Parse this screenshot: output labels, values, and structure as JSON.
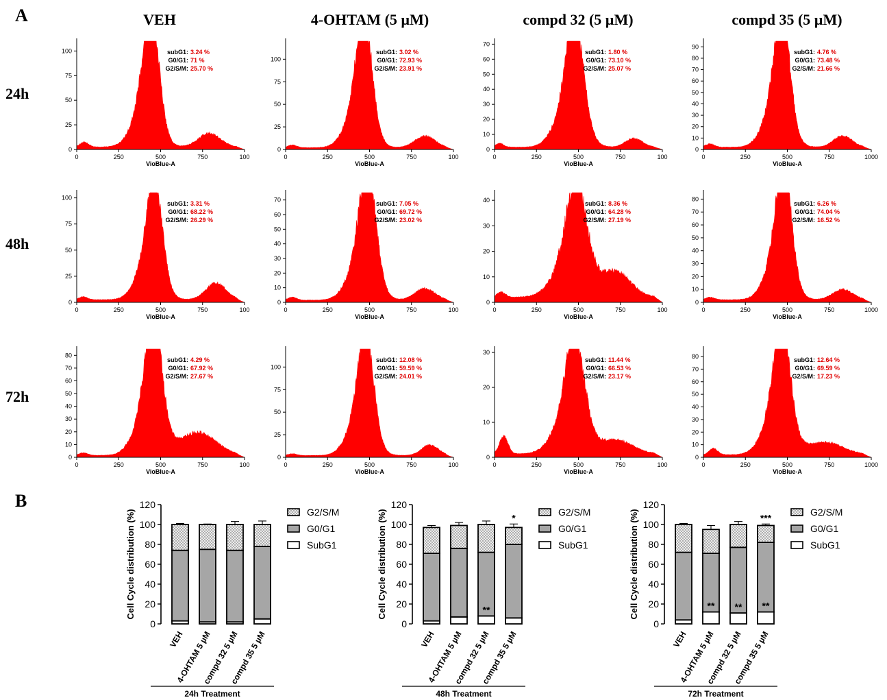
{
  "panel_a": {
    "label": "A",
    "columns": [
      "VEH",
      "4-OHTAM (5 µM)",
      "compd 32 (5 µM)",
      "compd 35 (5 µM)"
    ],
    "rows": [
      "24h",
      "48h",
      "72h"
    ]
  },
  "panel_b": {
    "label": "B"
  },
  "chart_data": [
    {
      "type": "area",
      "panel": "A",
      "time": "24h",
      "condition": "VEH",
      "xlabel": "VioBlue-A",
      "xlim": [
        0,
        1000
      ],
      "xticks": [
        "0",
        "250",
        "500",
        "750",
        "100"
      ],
      "ylim": [
        0,
        110
      ],
      "yticks": [
        0,
        25,
        50,
        75,
        100
      ],
      "peak": {
        "x": 445,
        "y": 100,
        "w": 45
      },
      "shoulder": {
        "x": 790,
        "y": 14,
        "w": 65
      },
      "baseline": 2.5,
      "debris": {
        "x": 45,
        "y": 5
      },
      "stats": [
        {
          "label": "subG1:",
          "value": "3.24 %"
        },
        {
          "label": "G0/G1:",
          "value": "71 %"
        },
        {
          "label": "G2/S/M:",
          "value": "25.70 %"
        }
      ]
    },
    {
      "type": "area",
      "panel": "A",
      "time": "24h",
      "condition": "4-OHTAM (5 µM)",
      "xlabel": "VioBlue-A",
      "xlim": [
        0,
        1000
      ],
      "xticks": [
        "0",
        "250",
        "500",
        "750",
        "100"
      ],
      "ylim": [
        0,
        120
      ],
      "yticks": [
        0,
        25,
        50,
        75,
        100
      ],
      "peak": {
        "x": 470,
        "y": 106,
        "w": 45
      },
      "shoulder": {
        "x": 830,
        "y": 13,
        "w": 60
      },
      "baseline": 2,
      "debris": {
        "x": 40,
        "y": 3
      },
      "stats": [
        {
          "label": "subG1:",
          "value": "3.02 %"
        },
        {
          "label": "G0/G1:",
          "value": "72.93 %"
        },
        {
          "label": "G2/S/M:",
          "value": "23.91 %"
        }
      ]
    },
    {
      "type": "area",
      "panel": "A",
      "time": "24h",
      "condition": "compd 32 (5 µM)",
      "xlabel": "VioBlue-A",
      "xlim": [
        0,
        1000
      ],
      "xticks": [
        "0",
        "250",
        "500",
        "750",
        "100"
      ],
      "ylim": [
        0,
        72
      ],
      "yticks": [
        0,
        10,
        20,
        30,
        40,
        50,
        60,
        70
      ],
      "peak": {
        "x": 480,
        "y": 62,
        "w": 50
      },
      "shoulder": {
        "x": 830,
        "y": 6,
        "w": 50
      },
      "baseline": 1.5,
      "debris": {
        "x": 30,
        "y": 2.5
      },
      "stats": [
        {
          "label": "subG1:",
          "value": "1.80 %"
        },
        {
          "label": "G0/G1:",
          "value": "73.10 %"
        },
        {
          "label": "G2/S/M:",
          "value": "25.07 %"
        }
      ]
    },
    {
      "type": "area",
      "panel": "A",
      "time": "24h",
      "condition": "compd 35 (5 µM)",
      "xlabel": "VioBlue-A",
      "xlim": [
        0,
        1000
      ],
      "xticks": [
        "0",
        "250",
        "500",
        "750",
        "1000"
      ],
      "ylim": [
        0,
        95
      ],
      "yticks": [
        0,
        10,
        20,
        30,
        40,
        50,
        60,
        70,
        80,
        90
      ],
      "peak": {
        "x": 470,
        "y": 85,
        "w": 45
      },
      "shoulder": {
        "x": 830,
        "y": 10,
        "w": 55
      },
      "baseline": 2,
      "debris": {
        "x": 40,
        "y": 3
      },
      "stats": [
        {
          "label": "subG1:",
          "value": "4.76 %"
        },
        {
          "label": "G0/G1:",
          "value": "73.48 %"
        },
        {
          "label": "G2/S/M:",
          "value": "21.66 %"
        }
      ]
    },
    {
      "type": "area",
      "panel": "A",
      "time": "48h",
      "condition": "VEH",
      "xlabel": "VioBlue-A",
      "xlim": [
        0,
        1000
      ],
      "xticks": [
        "0",
        "250",
        "500",
        "750",
        "100"
      ],
      "ylim": [
        0,
        105
      ],
      "yticks": [
        0,
        25,
        50,
        75,
        100
      ],
      "peak": {
        "x": 465,
        "y": 82,
        "w": 45
      },
      "shoulder": {
        "x": 830,
        "y": 16,
        "w": 60
      },
      "baseline": 2.5,
      "debris": {
        "x": 40,
        "y": 3
      },
      "stats": [
        {
          "label": "subG1:",
          "value": "3.31 %"
        },
        {
          "label": "G0/G1:",
          "value": "68.22 %"
        },
        {
          "label": "G2/S/M:",
          "value": "26.29 %"
        }
      ]
    },
    {
      "type": "area",
      "panel": "A",
      "time": "48h",
      "condition": "4-OHTAM (5 µM)",
      "xlabel": "VioBlue-A",
      "xlim": [
        0,
        1000
      ],
      "xticks": [
        "0",
        "250",
        "500",
        "750",
        "100"
      ],
      "ylim": [
        0,
        75
      ],
      "yticks": [
        0,
        10,
        20,
        30,
        40,
        50,
        60,
        70
      ],
      "peak": {
        "x": 490,
        "y": 64,
        "w": 48
      },
      "shoulder": {
        "x": 830,
        "y": 8,
        "w": 60
      },
      "baseline": 1.5,
      "debris": {
        "x": 40,
        "y": 2
      },
      "stats": [
        {
          "label": "subG1:",
          "value": "7.05 %"
        },
        {
          "label": "G0/G1:",
          "value": "69.72 %"
        },
        {
          "label": "G2/S/M:",
          "value": "23.02 %"
        }
      ]
    },
    {
      "type": "area",
      "panel": "A",
      "time": "48h",
      "condition": "compd 32 (5 µM)",
      "xlabel": "VioBlue-A",
      "xlim": [
        0,
        1000
      ],
      "xticks": [
        "0",
        "250",
        "500",
        "750",
        "100"
      ],
      "ylim": [
        0,
        43
      ],
      "yticks": [
        0,
        10,
        20,
        30,
        40
      ],
      "peak": {
        "x": 490,
        "y": 32,
        "w": 60
      },
      "shoulder": {
        "x": 720,
        "y": 10,
        "w": 90
      },
      "baseline": 2,
      "debris": {
        "x": 40,
        "y": 2
      },
      "stats": [
        {
          "label": "subG1:",
          "value": "8.36 %"
        },
        {
          "label": "G0/G1:",
          "value": "64.28 %"
        },
        {
          "label": "G2/S/M:",
          "value": "27.19 %"
        }
      ]
    },
    {
      "type": "area",
      "panel": "A",
      "time": "48h",
      "condition": "compd 35 (5 µM)",
      "xlabel": "VioBlue-A",
      "xlim": [
        0,
        1000
      ],
      "xticks": [
        "0",
        "250",
        "500",
        "750",
        "1000"
      ],
      "ylim": [
        0,
        85
      ],
      "yticks": [
        0,
        10,
        20,
        30,
        40,
        50,
        60,
        70,
        80
      ],
      "peak": {
        "x": 480,
        "y": 75,
        "w": 45
      },
      "shoulder": {
        "x": 830,
        "y": 8,
        "w": 60
      },
      "baseline": 2,
      "debris": {
        "x": 40,
        "y": 2
      },
      "stats": [
        {
          "label": "subG1:",
          "value": "6.26 %"
        },
        {
          "label": "G0/G1:",
          "value": "74.04 %"
        },
        {
          "label": "G2/S/M:",
          "value": "16.52 %"
        }
      ]
    },
    {
      "type": "area",
      "panel": "A",
      "time": "72h",
      "condition": "VEH",
      "xlabel": "VioBlue-A",
      "xlim": [
        0,
        1000
      ],
      "xticks": [
        "0",
        "250",
        "500",
        "750",
        "100"
      ],
      "ylim": [
        0,
        85
      ],
      "yticks": [
        0,
        10,
        20,
        30,
        40,
        50,
        60,
        70,
        80
      ],
      "peak": {
        "x": 460,
        "y": 76,
        "w": 48
      },
      "shoulder": {
        "x": 720,
        "y": 18,
        "w": 110
      },
      "baseline": 1.5,
      "debris": {
        "x": 40,
        "y": 2
      },
      "stats": [
        {
          "label": "subG1:",
          "value": "4.29 %"
        },
        {
          "label": "G0/G1:",
          "value": "67.92 %"
        },
        {
          "label": "G2/S/M:",
          "value": "27.67 %"
        }
      ]
    },
    {
      "type": "area",
      "panel": "A",
      "time": "72h",
      "condition": "4-OHTAM (5 µM)",
      "xlabel": "VioBlue-A",
      "xlim": [
        0,
        1000
      ],
      "xticks": [
        "0",
        "250",
        "500",
        "750",
        "100"
      ],
      "ylim": [
        0,
        120
      ],
      "yticks": [
        0,
        25,
        50,
        75,
        100
      ],
      "peak": {
        "x": 480,
        "y": 97,
        "w": 45
      },
      "shoulder": {
        "x": 860,
        "y": 12,
        "w": 50
      },
      "baseline": 2,
      "debris": {
        "x": 40,
        "y": 2
      },
      "stats": [
        {
          "label": "subG1:",
          "value": "12.08 %"
        },
        {
          "label": "G0/G1:",
          "value": "59.59 %"
        },
        {
          "label": "G2/S/M:",
          "value": "24.01 %"
        }
      ]
    },
    {
      "type": "area",
      "panel": "A",
      "time": "72h",
      "condition": "compd 32 (5 µM)",
      "xlabel": "VioBlue-A",
      "xlim": [
        0,
        1000
      ],
      "xticks": [
        "0",
        "250",
        "500",
        "750",
        "100"
      ],
      "ylim": [
        0,
        31
      ],
      "yticks": [
        0,
        10,
        20,
        30
      ],
      "peak": {
        "x": 480,
        "y": 24,
        "w": 55
      },
      "shoulder": {
        "x": 720,
        "y": 4,
        "w": 100
      },
      "baseline": 1,
      "debris": {
        "x": 55,
        "y": 5
      },
      "stats": [
        {
          "label": "subG1:",
          "value": "11.44 %"
        },
        {
          "label": "G0/G1:",
          "value": "66.53 %"
        },
        {
          "label": "G2/S/M:",
          "value": "23.17 %"
        }
      ]
    },
    {
      "type": "area",
      "panel": "A",
      "time": "72h",
      "condition": "compd 35 (5 µM)",
      "xlabel": "VioBlue-A",
      "xlim": [
        0,
        1000
      ],
      "xticks": [
        "0",
        "250",
        "500",
        "750",
        "1000"
      ],
      "ylim": [
        0,
        86
      ],
      "yticks": [
        0,
        10,
        20,
        30,
        40,
        50,
        60,
        70,
        80
      ],
      "peak": {
        "x": 470,
        "y": 74,
        "w": 48
      },
      "shoulder": {
        "x": 720,
        "y": 10,
        "w": 110
      },
      "baseline": 2,
      "debris": {
        "x": 60,
        "y": 5
      },
      "stats": [
        {
          "label": "subG1:",
          "value": "12.64 %"
        },
        {
          "label": "G0/G1:",
          "value": "69.59 %"
        },
        {
          "label": "G2/S/M:",
          "value": "17.23 %"
        }
      ]
    },
    {
      "type": "bar",
      "panel": "B",
      "stacked": true,
      "title": "24h Treatment",
      "ylabel": "Cell Cycle distribution (%)",
      "ylim": [
        0,
        120
      ],
      "yticks": [
        0,
        20,
        40,
        60,
        80,
        100,
        120
      ],
      "categories": [
        "VEH",
        "4-OHTAM 5 µM",
        "compd 32 5 µM",
        "compd 35 5 µM"
      ],
      "series": [
        {
          "name": "SubG1",
          "fill": "#ffffff",
          "values": [
            3,
            2,
            2,
            5
          ],
          "err": [
            1,
            0.5,
            0.7,
            2
          ]
        },
        {
          "name": "G0/G1",
          "fill": "#a6a6a6",
          "values": [
            71,
            73,
            72,
            73
          ],
          "err": [
            2,
            1,
            5,
            1.5
          ]
        },
        {
          "name": "G2/S/M",
          "fill": "dots",
          "values": [
            26,
            25,
            26,
            22
          ],
          "err": [
            1,
            0.5,
            3,
            3.5
          ]
        }
      ],
      "legend": [
        "G2/S/M",
        "G0/G1",
        "SubG1"
      ],
      "annotations": []
    },
    {
      "type": "bar",
      "panel": "B",
      "stacked": true,
      "title": "48h Treatment",
      "ylabel": "Cell Cycle distribution (%)",
      "ylim": [
        0,
        120
      ],
      "yticks": [
        0,
        20,
        40,
        60,
        80,
        100,
        120
      ],
      "categories": [
        "VEH",
        "4-OHTAM 5 µM",
        "compd 32 5 µM",
        "compd 35 5 µM"
      ],
      "series": [
        {
          "name": "SubG1",
          "fill": "#ffffff",
          "values": [
            3,
            7,
            8,
            6
          ],
          "err": [
            1,
            2,
            1,
            2
          ]
        },
        {
          "name": "G0/G1",
          "fill": "#a6a6a6",
          "values": [
            68,
            69,
            64,
            74
          ],
          "err": [
            2,
            3,
            4,
            3
          ]
        },
        {
          "name": "G2/S/M",
          "fill": "dots",
          "values": [
            26,
            23,
            28,
            17
          ],
          "err": [
            2,
            3,
            3.5,
            3.5
          ]
        }
      ],
      "legend": [
        "G2/S/M",
        "G0/G1",
        "SubG1"
      ],
      "annotations": [
        {
          "index": 2,
          "text": "**",
          "at": "subg1"
        },
        {
          "index": 3,
          "text": "*",
          "at": "top"
        }
      ]
    },
    {
      "type": "bar",
      "panel": "B",
      "stacked": true,
      "title": "72h Treatment",
      "ylabel": "Cell Cycle distribution (%)",
      "ylim": [
        0,
        120
      ],
      "yticks": [
        0,
        20,
        40,
        60,
        80,
        100,
        120
      ],
      "categories": [
        "VEH",
        "4-OHTAM 5 µM",
        "compd 32 5 µM",
        "compd 35 5 µM"
      ],
      "series": [
        {
          "name": "SubG1",
          "fill": "#ffffff",
          "values": [
            4,
            12,
            11,
            12
          ],
          "err": [
            1,
            2,
            1.5,
            3
          ]
        },
        {
          "name": "G0/G1",
          "fill": "#a6a6a6",
          "values": [
            68,
            59,
            66,
            70
          ],
          "err": [
            2,
            4,
            2,
            3
          ]
        },
        {
          "name": "G2/S/M",
          "fill": "dots",
          "values": [
            28,
            24,
            23,
            17
          ],
          "err": [
            1,
            4,
            3,
            1.5
          ]
        }
      ],
      "legend": [
        "G2/S/M",
        "G0/G1",
        "SubG1"
      ],
      "annotations": [
        {
          "index": 1,
          "text": "**",
          "at": "subg1"
        },
        {
          "index": 2,
          "text": "**",
          "at": "subg1"
        },
        {
          "index": 3,
          "text": "**",
          "at": "subg1"
        },
        {
          "index": 3,
          "text": "***",
          "at": "top"
        }
      ]
    }
  ]
}
